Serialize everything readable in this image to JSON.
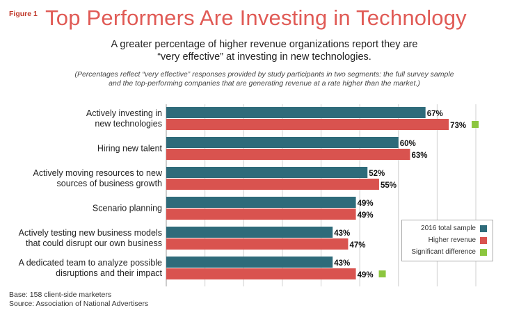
{
  "figure_label": "Figure 1",
  "title": "Top Performers Are Investing in Technology",
  "subtitle_line1": "A greater percentage of higher revenue organizations report they are",
  "subtitle_line2": "“very effective” at investing in new technologies.",
  "note_line1": "(Percentages reflect “very effective” responses provided by study participants in two segments: the full survey sample",
  "note_line2": "and the top-performing companies that are generating revenue at a rate higher than the market.)",
  "base_line1": "Base: 158 client-side marketers",
  "base_line2": "Source: Association of National Advertisers",
  "colors": {
    "total": "#2e6b7a",
    "higher": "#d9534f",
    "significant": "#8cc63f",
    "title": "#e05a55"
  },
  "legend": {
    "total": "2016 total sample",
    "higher": "Higher revenue",
    "significant": "Significant difference"
  },
  "chart_data": {
    "type": "bar",
    "orientation": "horizontal",
    "categories": [
      [
        "Actively investing in",
        "new technologies"
      ],
      [
        "Hiring new talent"
      ],
      [
        "Actively moving resources to new",
        "sources of business growth"
      ],
      [
        "Scenario planning"
      ],
      [
        "Actively testing new business models",
        "that could disrupt our own business"
      ],
      [
        "A dedicated team to analyze possible",
        "disruptions and their impact"
      ]
    ],
    "series": [
      {
        "name": "2016 total sample",
        "values": [
          67,
          60,
          52,
          49,
          43,
          43
        ]
      },
      {
        "name": "Higher revenue",
        "values": [
          73,
          63,
          55,
          49,
          47,
          49
        ]
      }
    ],
    "value_labels": [
      [
        "67%",
        "73%"
      ],
      [
        "60%",
        "63%"
      ],
      [
        "52%",
        "55%"
      ],
      [
        "49%",
        "49%"
      ],
      [
        "43%",
        "47%"
      ],
      [
        "43%",
        "49%"
      ]
    ],
    "significant": [
      true,
      false,
      false,
      false,
      false,
      true
    ],
    "xlim": [
      0,
      80
    ],
    "grid": true,
    "legend_position": "bottom-right"
  }
}
